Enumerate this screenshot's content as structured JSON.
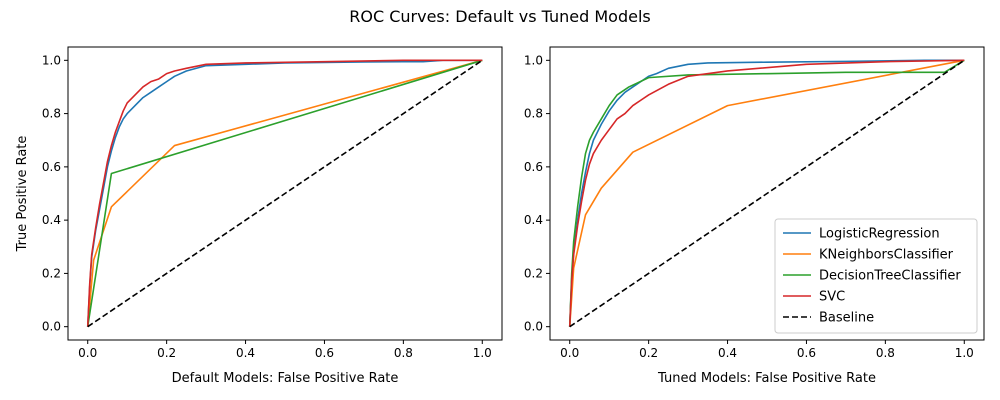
{
  "figure": {
    "title": "ROC Curves: Default vs Tuned Models"
  },
  "chart_data": [
    {
      "type": "line",
      "xlabel": "Default Models: False Positive Rate",
      "ylabel": "True Positive Rate",
      "xlim": [
        -0.05,
        1.05
      ],
      "ylim": [
        -0.05,
        1.05
      ],
      "xticks": [
        "0.0",
        "0.2",
        "0.4",
        "0.6",
        "0.8",
        "1.0"
      ],
      "yticks": [
        "0.0",
        "0.2",
        "0.4",
        "0.6",
        "0.8",
        "1.0"
      ],
      "grid": false,
      "legend": null,
      "series": [
        {
          "name": "LogisticRegression",
          "color": "#1f77b4",
          "dash": "solid",
          "points": [
            [
              0,
              0
            ],
            [
              0.005,
              0.15
            ],
            [
              0.01,
              0.26
            ],
            [
              0.02,
              0.36
            ],
            [
              0.03,
              0.44
            ],
            [
              0.04,
              0.52
            ],
            [
              0.05,
              0.6
            ],
            [
              0.06,
              0.66
            ],
            [
              0.07,
              0.71
            ],
            [
              0.08,
              0.75
            ],
            [
              0.09,
              0.78
            ],
            [
              0.1,
              0.8
            ],
            [
              0.12,
              0.83
            ],
            [
              0.14,
              0.86
            ],
            [
              0.16,
              0.88
            ],
            [
              0.18,
              0.9
            ],
            [
              0.2,
              0.92
            ],
            [
              0.22,
              0.94
            ],
            [
              0.25,
              0.96
            ],
            [
              0.3,
              0.98
            ],
            [
              0.4,
              0.985
            ],
            [
              0.5,
              0.99
            ],
            [
              0.6,
              0.992
            ],
            [
              0.7,
              0.994
            ],
            [
              0.8,
              0.995
            ],
            [
              0.85,
              0.995
            ],
            [
              0.9,
              1
            ],
            [
              1,
              1
            ]
          ]
        },
        {
          "name": "KNeighborsClassifier",
          "color": "#ff7f0e",
          "dash": "solid",
          "points": [
            [
              0,
              0
            ],
            [
              0.015,
              0.25
            ],
            [
              0.06,
              0.45
            ],
            [
              0.22,
              0.68
            ],
            [
              1,
              1
            ]
          ]
        },
        {
          "name": "DecisionTreeClassifier",
          "color": "#2ca02c",
          "dash": "solid",
          "points": [
            [
              0,
              0
            ],
            [
              0.06,
              0.575
            ],
            [
              1,
              1
            ]
          ]
        },
        {
          "name": "SVC",
          "color": "#d62728",
          "dash": "solid",
          "points": [
            [
              0,
              0
            ],
            [
              0.005,
              0.16
            ],
            [
              0.01,
              0.27
            ],
            [
              0.02,
              0.37
            ],
            [
              0.03,
              0.46
            ],
            [
              0.04,
              0.54
            ],
            [
              0.05,
              0.62
            ],
            [
              0.06,
              0.68
            ],
            [
              0.07,
              0.73
            ],
            [
              0.08,
              0.77
            ],
            [
              0.09,
              0.81
            ],
            [
              0.1,
              0.84
            ],
            [
              0.12,
              0.87
            ],
            [
              0.14,
              0.9
            ],
            [
              0.16,
              0.92
            ],
            [
              0.18,
              0.93
            ],
            [
              0.2,
              0.95
            ],
            [
              0.22,
              0.96
            ],
            [
              0.25,
              0.97
            ],
            [
              0.3,
              0.985
            ],
            [
              0.4,
              0.99
            ],
            [
              0.6,
              0.995
            ],
            [
              0.8,
              1
            ],
            [
              1,
              1
            ]
          ]
        },
        {
          "name": "Baseline",
          "color": "#000000",
          "dash": "dashed",
          "points": [
            [
              0,
              0
            ],
            [
              1,
              1
            ]
          ]
        }
      ]
    },
    {
      "type": "line",
      "xlabel": "Tuned Models: False Positive Rate",
      "ylabel": "",
      "xlim": [
        -0.05,
        1.05
      ],
      "ylim": [
        -0.05,
        1.05
      ],
      "xticks": [
        "0.0",
        "0.2",
        "0.4",
        "0.6",
        "0.8",
        "1.0"
      ],
      "yticks": [
        "0.0",
        "0.2",
        "0.4",
        "0.6",
        "0.8",
        "1.0"
      ],
      "grid": false,
      "legend": "lower-right",
      "series": [
        {
          "name": "LogisticRegression",
          "color": "#1f77b4",
          "dash": "solid",
          "points": [
            [
              0,
              0
            ],
            [
              0.005,
              0.18
            ],
            [
              0.01,
              0.28
            ],
            [
              0.02,
              0.4
            ],
            [
              0.03,
              0.5
            ],
            [
              0.04,
              0.58
            ],
            [
              0.05,
              0.65
            ],
            [
              0.06,
              0.7
            ],
            [
              0.08,
              0.76
            ],
            [
              0.1,
              0.81
            ],
            [
              0.12,
              0.85
            ],
            [
              0.14,
              0.88
            ],
            [
              0.16,
              0.9
            ],
            [
              0.18,
              0.92
            ],
            [
              0.2,
              0.94
            ],
            [
              0.22,
              0.95
            ],
            [
              0.25,
              0.97
            ],
            [
              0.3,
              0.985
            ],
            [
              0.35,
              0.99
            ],
            [
              0.5,
              0.993
            ],
            [
              0.7,
              0.996
            ],
            [
              0.9,
              1
            ],
            [
              1,
              1
            ]
          ]
        },
        {
          "name": "KNeighborsClassifier",
          "color": "#ff7f0e",
          "dash": "solid",
          "points": [
            [
              0,
              0
            ],
            [
              0.01,
              0.22
            ],
            [
              0.04,
              0.42
            ],
            [
              0.08,
              0.52
            ],
            [
              0.16,
              0.655
            ],
            [
              0.4,
              0.83
            ],
            [
              1,
              1
            ]
          ]
        },
        {
          "name": "DecisionTreeClassifier",
          "color": "#2ca02c",
          "dash": "solid",
          "points": [
            [
              0,
              0
            ],
            [
              0.005,
              0.2
            ],
            [
              0.01,
              0.32
            ],
            [
              0.02,
              0.45
            ],
            [
              0.03,
              0.56
            ],
            [
              0.04,
              0.65
            ],
            [
              0.05,
              0.7
            ],
            [
              0.06,
              0.73
            ],
            [
              0.08,
              0.78
            ],
            [
              0.1,
              0.83
            ],
            [
              0.12,
              0.87
            ],
            [
              0.15,
              0.9
            ],
            [
              0.2,
              0.935
            ],
            [
              0.3,
              0.945
            ],
            [
              0.5,
              0.95
            ],
            [
              0.7,
              0.955
            ],
            [
              0.95,
              0.955
            ],
            [
              1,
              1
            ]
          ]
        },
        {
          "name": "SVC",
          "color": "#d62728",
          "dash": "solid",
          "points": [
            [
              0,
              0
            ],
            [
              0.005,
              0.17
            ],
            [
              0.01,
              0.27
            ],
            [
              0.02,
              0.38
            ],
            [
              0.03,
              0.47
            ],
            [
              0.04,
              0.55
            ],
            [
              0.05,
              0.61
            ],
            [
              0.06,
              0.65
            ],
            [
              0.08,
              0.7
            ],
            [
              0.1,
              0.74
            ],
            [
              0.12,
              0.78
            ],
            [
              0.14,
              0.8
            ],
            [
              0.16,
              0.83
            ],
            [
              0.18,
              0.85
            ],
            [
              0.2,
              0.87
            ],
            [
              0.25,
              0.91
            ],
            [
              0.3,
              0.94
            ],
            [
              0.4,
              0.96
            ],
            [
              0.6,
              0.985
            ],
            [
              0.8,
              0.995
            ],
            [
              1,
              1
            ]
          ]
        },
        {
          "name": "Baseline",
          "color": "#000000",
          "dash": "dashed",
          "points": [
            [
              0,
              0
            ],
            [
              1,
              1
            ]
          ]
        }
      ]
    }
  ]
}
